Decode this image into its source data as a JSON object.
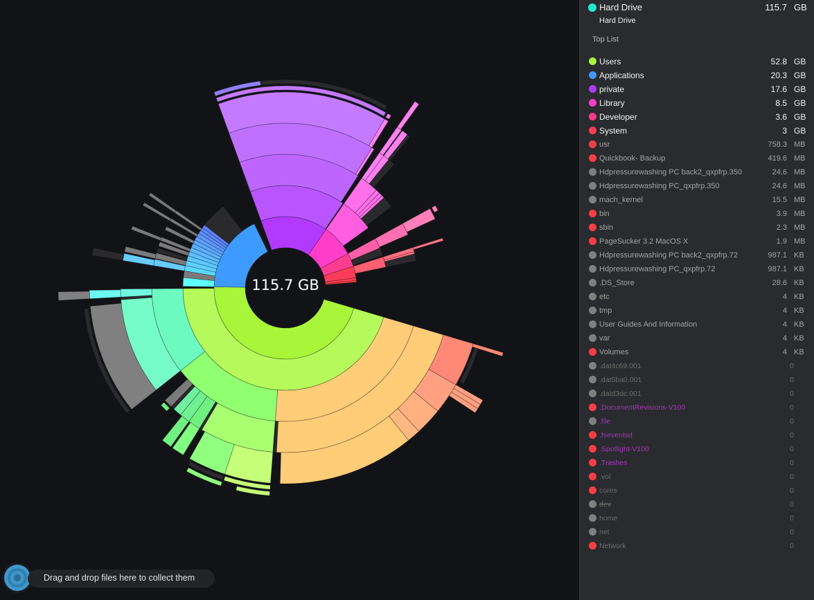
{
  "center_label": "115.7 GB",
  "drop_zone": {
    "label": "Drag and drop files here to collect them"
  },
  "panel": {
    "header": {
      "name": "Hard Drive",
      "value": "115.7",
      "unit": "GB",
      "color": "#20e8d0",
      "subtitle": "Hard Drive"
    },
    "top_list_label": "Top List",
    "items": [
      {
        "name": "Users",
        "value": "52.8",
        "unit": "GB",
        "color": "#a8f53a",
        "tier": "main"
      },
      {
        "name": "Applications",
        "value": "20.3",
        "unit": "GB",
        "color": "#3d9bff",
        "tier": "main"
      },
      {
        "name": "private",
        "value": "17.6",
        "unit": "GB",
        "color": "#b23aff",
        "tier": "main"
      },
      {
        "name": "Library",
        "value": "8.5",
        "unit": "GB",
        "color": "#ff3dc8",
        "tier": "main"
      },
      {
        "name": "Developer",
        "value": "3.6",
        "unit": "GB",
        "color": "#ff3d88",
        "tier": "main"
      },
      {
        "name": "System",
        "value": "3",
        "unit": "GB",
        "color": "#ff3d55",
        "tier": "main"
      },
      {
        "name": "usr",
        "value": "758.3",
        "unit": "MB",
        "color": "#ff3d45",
        "tier": "sub"
      },
      {
        "name": "Quickbook- Backup",
        "value": "419.6",
        "unit": "MB",
        "color": "#ff3d45",
        "tier": "sub"
      },
      {
        "name": "Hdpressurewashing PC back2_qxpfrp.350",
        "value": "24.6",
        "unit": "MB",
        "color": "#808080",
        "tier": "sub"
      },
      {
        "name": "Hdpressurewashing PC_qxpfrp.350",
        "value": "24.6",
        "unit": "MB",
        "color": "#808080",
        "tier": "sub"
      },
      {
        "name": "mach_kernel",
        "value": "15.5",
        "unit": "MB",
        "color": "#808080",
        "tier": "sub"
      },
      {
        "name": "bin",
        "value": "3.9",
        "unit": "MB",
        "color": "#ff3d45",
        "tier": "sub"
      },
      {
        "name": "sbin",
        "value": "2.3",
        "unit": "MB",
        "color": "#ff3d45",
        "tier": "sub"
      },
      {
        "name": "PageSucker 3.2 MacOS X",
        "value": "1.9",
        "unit": "MB",
        "color": "#ff3d45",
        "tier": "sub"
      },
      {
        "name": "Hdpressurewashing PC back2_qxpfrp.72",
        "value": "987.1",
        "unit": "KB",
        "color": "#808080",
        "tier": "sub"
      },
      {
        "name": "Hdpressurewashing PC_qxpfrp.72",
        "value": "987.1",
        "unit": "KB",
        "color": "#808080",
        "tier": "sub"
      },
      {
        "name": ".DS_Store",
        "value": "28.6",
        "unit": "KB",
        "color": "#808080",
        "tier": "sub"
      },
      {
        "name": "etc",
        "value": "4",
        "unit": "KB",
        "color": "#808080",
        "tier": "sub"
      },
      {
        "name": "tmp",
        "value": "4",
        "unit": "KB",
        "color": "#808080",
        "tier": "sub"
      },
      {
        "name": "User Guides And Information",
        "value": "4",
        "unit": "KB",
        "color": "#808080",
        "tier": "sub"
      },
      {
        "name": "var",
        "value": "4",
        "unit": "KB",
        "color": "#808080",
        "tier": "sub"
      },
      {
        "name": "Volumes",
        "value": "4",
        "unit": "KB",
        "color": "#ff3d45",
        "tier": "sub"
      },
      {
        "name": ".dat4c69.001",
        "value": "0",
        "color": "#808080",
        "tier": "zero"
      },
      {
        "name": ".dat5ba0.001",
        "value": "0",
        "color": "#808080",
        "tier": "zero"
      },
      {
        "name": ".datd3dc.001",
        "value": "0",
        "color": "#808080",
        "tier": "zero"
      },
      {
        "name": ".DocumentRevisions-V100",
        "value": "0",
        "color": "#ff3d45",
        "tier": "sys"
      },
      {
        "name": ".file",
        "value": "0",
        "color": "#808080",
        "tier": "sys"
      },
      {
        "name": ".fseventsd",
        "value": "0",
        "color": "#ff3d45",
        "tier": "sys"
      },
      {
        "name": ".Spotlight-V100",
        "value": "0",
        "color": "#ff3d45",
        "tier": "sys"
      },
      {
        "name": ".Trashes",
        "value": "0",
        "color": "#ff3d45",
        "tier": "sys"
      },
      {
        "name": ".vol",
        "value": "0",
        "color": "#ff3d45",
        "tier": "zero"
      },
      {
        "name": "cores",
        "value": "0",
        "color": "#ff3d45",
        "tier": "zero"
      },
      {
        "name": "dev",
        "value": "0",
        "color": "#808080",
        "tier": "strike"
      },
      {
        "name": "home",
        "value": "0",
        "color": "#808080",
        "tier": "zero"
      },
      {
        "name": "net",
        "value": "0",
        "color": "#808080",
        "tier": "zero"
      },
      {
        "name": "Network",
        "value": "0",
        "color": "#ff3d45",
        "tier": "zero"
      }
    ]
  },
  "chart_data": {
    "type": "sunburst",
    "total_gb": 115.7,
    "start_angle_deg": 340,
    "hidden_color": "#2a2a2c",
    "tree": [
      {
        "s": 17.6,
        "c": "#b23aff",
        "k": [
          {
            "s": 17.4,
            "c": "#b955ff",
            "k": [
              {
                "s": 17.0,
                "c": "#bd66ff",
                "k": [
                  {
                    "s": 16.6,
                    "c": "#c070ff",
                    "k": [
                      {
                        "s": 16.2,
                        "c": "#c47aff",
                        "k": [
                          {
                            "s": 16.0,
                            "c": "#c47aff",
                            "t": true,
                            "k": [
                              {
                                "s": 4.2,
                                "c": "#9080ff",
                                "t": true
                              },
                              {
                                "s": 11.6,
                                "c": "#2a2a2c",
                                "t": true
                              }
                            ]
                          }
                        ]
                      },
                      {
                        "s": 0.4,
                        "c": "#ff80f5",
                        "k": [
                          {
                            "s": 0.35,
                            "c": "#ff80f5",
                            "t": true
                          }
                        ]
                      }
                    ]
                  },
                  {
                    "s": 0.3,
                    "c": "#ff80f5"
                  }
                ]
              }
            ]
          }
        ]
      },
      {
        "s": 8.5,
        "c": "#ff3dc8",
        "k": [
          {
            "s": 6.2,
            "c": "#ff5ee0",
            "k": [
              {
                "s": 2.6,
                "c": "#ff70ea",
                "k": [
                  {
                    "s": 0.6,
                    "c": "#ff80f0",
                    "k": [
                      {
                        "s": 0.5,
                        "c": "#ff80f0",
                        "k": [
                          {
                            "s": 0.4,
                            "c": "#ff80f0"
                          }
                        ]
                      }
                    ]
                  },
                  {
                    "s": 0.7,
                    "c": "#ff80f0",
                    "k": [
                      {
                        "s": 0.6,
                        "c": "#ff80f0"
                      },
                      {
                        "s": 0.3,
                        "c": "#2a2a2c"
                      }
                    ]
                  },
                  {
                    "s": 0.8,
                    "c": "#2a2a2c"
                  }
                ]
              },
              {
                "s": 0.6,
                "c": "#ff70ea"
              },
              {
                "s": 0.5,
                "c": "#ff70ea"
              },
              {
                "s": 0.4,
                "c": "#ff70ea"
              },
              {
                "s": 1.6,
                "c": "#2a2a2c"
              }
            ]
          }
        ]
      },
      {
        "s": 3.6,
        "c": "#ff3d90",
        "k": [
          {
            "s": 1.9,
            "c": "#ff60a8",
            "k": [
              {
                "s": 1.7,
                "c": "#ff70b0",
                "k": [
                  {
                    "s": 1.3,
                    "c": "#ff80b8",
                    "k": [
                      {
                        "s": 0.6,
                        "c": "#ff80b8",
                        "t": true
                      }
                    ]
                  }
                ]
              }
            ]
          },
          {
            "s": 1.4,
            "c": "#2a2a2c"
          }
        ]
      },
      {
        "s": 3.0,
        "c": "#ff3d58",
        "k": [
          {
            "s": 1.9,
            "c": "#ff6070",
            "k": [
              {
                "s": 0.6,
                "c": "#ff7080",
                "k": [
                  {
                    "s": 0.3,
                    "c": "#ff7585"
                  }
                ]
              },
              {
                "s": 0.3,
                "c": "#ff7080"
              },
              {
                "s": 1.0,
                "c": "#2a2a2c"
              }
            ]
          }
        ]
      },
      {
        "s": 0.76,
        "c": "#ff3d50"
      },
      {
        "s": 0.42,
        "c": "#ff4048"
      },
      {
        "s": 6.8
      },
      {
        "s": 52.8,
        "c": "#a8f53a",
        "k": [
          {
            "s": 52.4,
            "c": "#b5fa5a",
            "k": [
              {
                "s": 25.0,
                "c": "#ffcc77",
                "k": [
                  {
                    "s": 24.6,
                    "c": "#ffcc77",
                    "k": [
                      {
                        "s": 4.2,
                        "c": "#ff8877",
                        "k": [
                          {
                            "s": 0.3,
                            "c": "#ff8877"
                          },
                          {
                            "s": 3.5,
                            "c": "#2a2a2c",
                            "t": true
                          }
                        ]
                      },
                      {
                        "s": 3.0,
                        "c": "#ffa080",
                        "k": [
                          {
                            "s": 0.4,
                            "c": "#ffa080"
                          },
                          {
                            "s": 0.4,
                            "c": "#ffa080"
                          },
                          {
                            "s": 0.4,
                            "c": "#ffa080"
                          }
                        ]
                      },
                      {
                        "s": 2.6,
                        "c": "#ffb080"
                      },
                      {
                        "s": 1.3,
                        "c": "#ffb880"
                      },
                      {
                        "s": 13.0,
                        "c": "#ffcc77",
                        "k": []
                      },
                      {
                        "s": 0.5
                      }
                    ]
                  },
                  {
                    "s": 0.3,
                    "c": "#2a2a2c"
                  }
                ]
              },
              {
                "s": 15.2,
                "c": "#90ff70",
                "k": [
                  {
                    "s": 8.4,
                    "c": "#a8ff70",
                    "k": [
                      {
                        "s": 4.4,
                        "c": "#c6ff7a",
                        "k": [
                          {
                            "s": 4.3,
                            "c": "#c6ff7a",
                            "t": true,
                            "k": [
                              {
                                "s": 3.0,
                                "c": "#c6ff7a",
                                "t": true
                              }
                            ]
                          }
                        ]
                      },
                      {
                        "s": 3.6,
                        "c": "#90ff80",
                        "k": [
                          {
                            "s": 3.4,
                            "c": "#2a2a2c",
                            "t": true,
                            "k": [
                              {
                                "s": 3.3,
                                "c": "#90ff80",
                                "t": true
                              }
                            ]
                          }
                        ]
                      }
                    ]
                  },
                  {
                    "s": 0.3,
                    "c": "#2a2a2c"
                  },
                  {
                    "s": 1.4,
                    "c": "#70f080",
                    "k": [
                      {
                        "s": 1.2,
                        "c": "#80ff80"
                      }
                    ]
                  },
                  {
                    "s": 1.2,
                    "c": "#70f090",
                    "k": [
                      {
                        "s": 1.0,
                        "c": "#70f080"
                      }
                    ]
                  },
                  {
                    "s": 1.0,
                    "c": "#70f0a0"
                  },
                  {
                    "s": 0.4,
                    "c": "#2a2a2c"
                  },
                  {
                    "s": 1.0,
                    "c": "#7a7a7a",
                    "k": [
                      {
                        "s": 0.9,
                        "c": "#70f080",
                        "t": true
                      }
                    ]
                  }
                ]
              },
              {
                "s": 12.2,
                "c": "#6cfac0",
                "k": [
                  {
                    "s": 11.0,
                    "c": "#75fcc8",
                    "k": [
                      {
                        "s": 10.6,
                        "c": "#808080",
                        "k": [
                          {
                            "s": 10.4,
                            "c": "#2a2a2c",
                            "t": true
                          }
                        ]
                      }
                    ]
                  },
                  {
                    "s": 0.3,
                    "c": "#2a2a2c"
                  },
                  {
                    "s": 0.9,
                    "c": "#70f8e0",
                    "k": [
                      {
                        "s": 0.8,
                        "c": "#6cfaf0",
                        "k": [
                          {
                            "s": 0.7,
                            "c": "#808080"
                          }
                        ]
                      }
                    ]
                  }
                ]
              }
            ]
          }
        ]
      },
      {
        "s": 20.3,
        "c": "#3d9bff",
        "k": [
          {
            "s": 1.6,
            "c": "#5ffcff"
          },
          {
            "s": 1.2,
            "c": "#7a7a7a"
          },
          {
            "s": 1.0,
            "c": "#5cd8ff",
            "k": [
              {
                "s": 0.9,
                "c": "#66ccff",
                "k": [
                  {
                    "s": 0.8,
                    "c": "#66ccff",
                    "k": [
                      {
                        "s": 0.7,
                        "c": "#2a2a2c"
                      }
                    ]
                  }
                ]
              }
            ]
          },
          {
            "s": 0.9,
            "c": "#5cd0ff",
            "k": [
              {
                "s": 0.8,
                "c": "#7a7a7a",
                "k": [
                  {
                    "s": 0.6,
                    "c": "#7a7a7a"
                  }
                ]
              }
            ]
          },
          {
            "s": 0.9,
            "c": "#5cc8ff",
            "k": [
              {
                "s": 0.6,
                "c": "#2a2a2c"
              }
            ]
          },
          {
            "s": 0.8,
            "c": "#5cc0ff",
            "k": [
              {
                "s": 0.6,
                "c": "#7a7a7a"
              }
            ]
          },
          {
            "s": 0.8,
            "c": "#5cb8ff",
            "k": [
              {
                "s": 0.5,
                "c": "#7a7a7a",
                "k": [
                  {
                    "s": 0.4,
                    "c": "#7a7a7a"
                  }
                ]
              }
            ]
          },
          {
            "s": 0.8,
            "c": "#5cb0ff"
          },
          {
            "s": 0.7,
            "c": "#5ca8ff",
            "k": [
              {
                "s": 0.5,
                "c": "#7a7a7a"
              }
            ]
          },
          {
            "s": 0.7,
            "c": "#5ca0ff"
          },
          {
            "s": 0.7,
            "c": "#5c98ff",
            "k": [
              {
                "s": 0.4,
                "c": "#7a7a7a",
                "k": [
                  {
                    "s": 0.35,
                    "c": "#7a7a7a"
                  }
                ]
              }
            ]
          },
          {
            "s": 0.6,
            "c": "#5c90ff"
          },
          {
            "s": 0.6,
            "c": "#5c88ff",
            "k": [
              {
                "s": 0.4,
                "c": "#7a7a7a",
                "k": [
                  {
                    "s": 0.35,
                    "c": "#7a7a7a"
                  }
                ]
              }
            ]
          },
          {
            "s": 0.6,
            "c": "#6080ff"
          },
          {
            "s": 4.8,
            "c": "#2a2a2c"
          }
        ]
      }
    ]
  }
}
